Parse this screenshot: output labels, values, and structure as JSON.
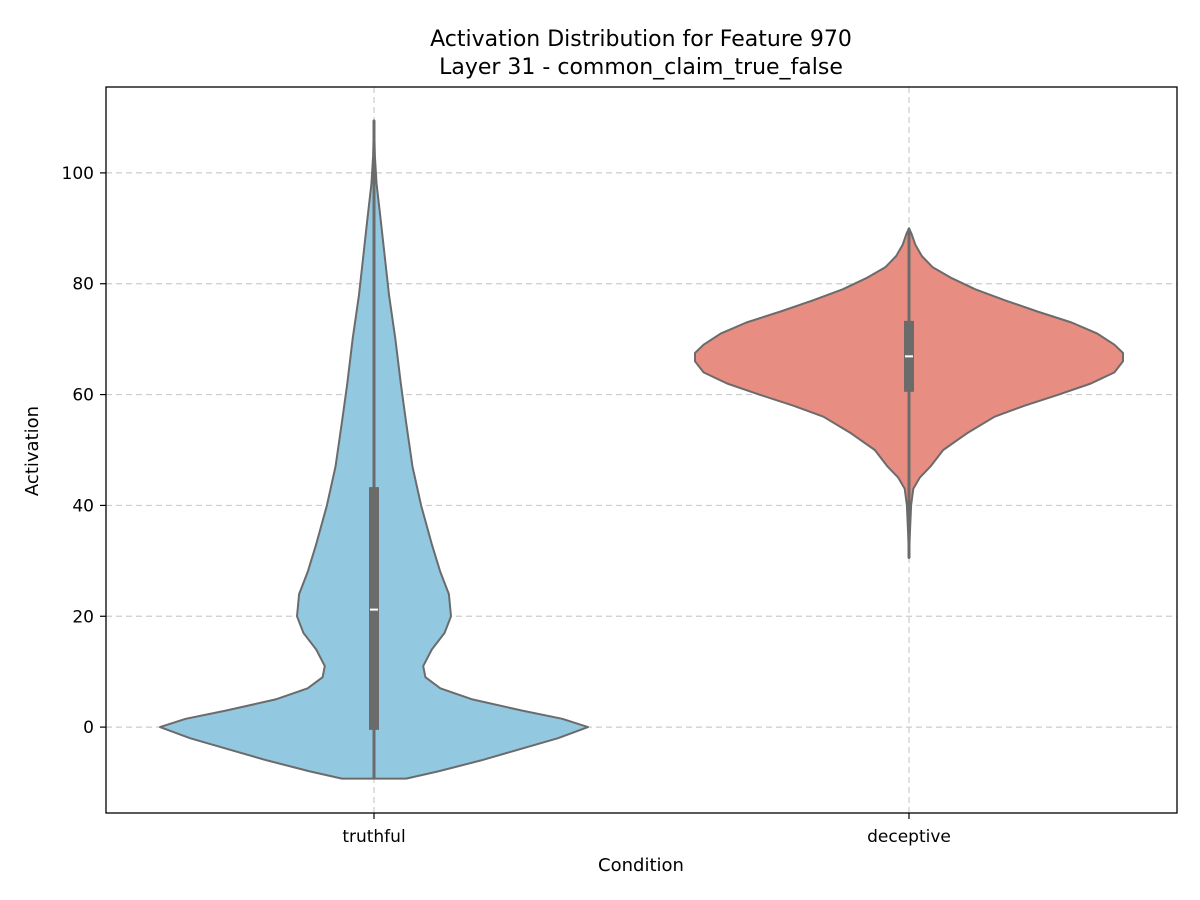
{
  "chart_data": {
    "type": "violin",
    "title": "Activation Distribution for Feature 970",
    "subtitle": "Layer 31 - common_claim_true_false",
    "xlabel": "Condition",
    "ylabel": "Activation",
    "categories": [
      "truthful",
      "deceptive"
    ],
    "ylim": [
      -15.5,
      115.5
    ],
    "yticks": [
      0,
      20,
      40,
      60,
      80,
      100
    ],
    "grid": true,
    "colors": {
      "truthful": "#92c9e0",
      "deceptive": "#e88d82",
      "outline": "#6b6b6b",
      "box": "#6b6b6b",
      "median": "#ffffff"
    },
    "series": [
      {
        "name": "truthful",
        "q1": -0.5,
        "median": 21.2,
        "q3": 43.3,
        "whisker_low": -9.3,
        "whisker_high": 109.5,
        "density_profile": [
          [
            -9.3,
            0.15
          ],
          [
            -8.0,
            0.3
          ],
          [
            -6.0,
            0.5
          ],
          [
            -4.0,
            0.68
          ],
          [
            -2.0,
            0.86
          ],
          [
            0.0,
            1.0
          ],
          [
            1.5,
            0.88
          ],
          [
            3.0,
            0.69
          ],
          [
            5.0,
            0.46
          ],
          [
            7.0,
            0.31
          ],
          [
            9.0,
            0.24
          ],
          [
            11.0,
            0.23
          ],
          [
            14.0,
            0.27
          ],
          [
            17.0,
            0.33
          ],
          [
            20.0,
            0.36
          ],
          [
            24.0,
            0.35
          ],
          [
            28.0,
            0.31
          ],
          [
            33.0,
            0.27
          ],
          [
            40.0,
            0.22
          ],
          [
            47.0,
            0.18
          ],
          [
            55.0,
            0.15
          ],
          [
            62.0,
            0.125
          ],
          [
            70.0,
            0.1
          ],
          [
            78.0,
            0.07
          ],
          [
            85.0,
            0.05
          ],
          [
            92.0,
            0.03
          ],
          [
            98.0,
            0.012
          ],
          [
            103.0,
            0.004
          ],
          [
            109.5,
            0.0
          ]
        ]
      },
      {
        "name": "deceptive",
        "q1": 60.5,
        "median": 66.9,
        "q3": 73.3,
        "whisker_low": 30.5,
        "whisker_high": 90.0,
        "density_profile": [
          [
            30.5,
            0.0
          ],
          [
            35.0,
            0.004
          ],
          [
            40.0,
            0.01
          ],
          [
            43.0,
            0.02
          ],
          [
            45.0,
            0.05
          ],
          [
            47.0,
            0.1
          ],
          [
            50.0,
            0.16
          ],
          [
            53.0,
            0.27
          ],
          [
            56.0,
            0.4
          ],
          [
            58.0,
            0.54
          ],
          [
            60.0,
            0.7
          ],
          [
            62.0,
            0.85
          ],
          [
            64.0,
            0.96
          ],
          [
            66.0,
            1.0
          ],
          [
            67.5,
            1.0
          ],
          [
            69.0,
            0.96
          ],
          [
            71.0,
            0.88
          ],
          [
            73.0,
            0.76
          ],
          [
            75.0,
            0.6
          ],
          [
            77.0,
            0.45
          ],
          [
            79.0,
            0.31
          ],
          [
            81.0,
            0.2
          ],
          [
            83.0,
            0.11
          ],
          [
            85.0,
            0.06
          ],
          [
            87.0,
            0.03
          ],
          [
            89.0,
            0.012
          ],
          [
            90.0,
            0.0
          ]
        ]
      }
    ]
  }
}
